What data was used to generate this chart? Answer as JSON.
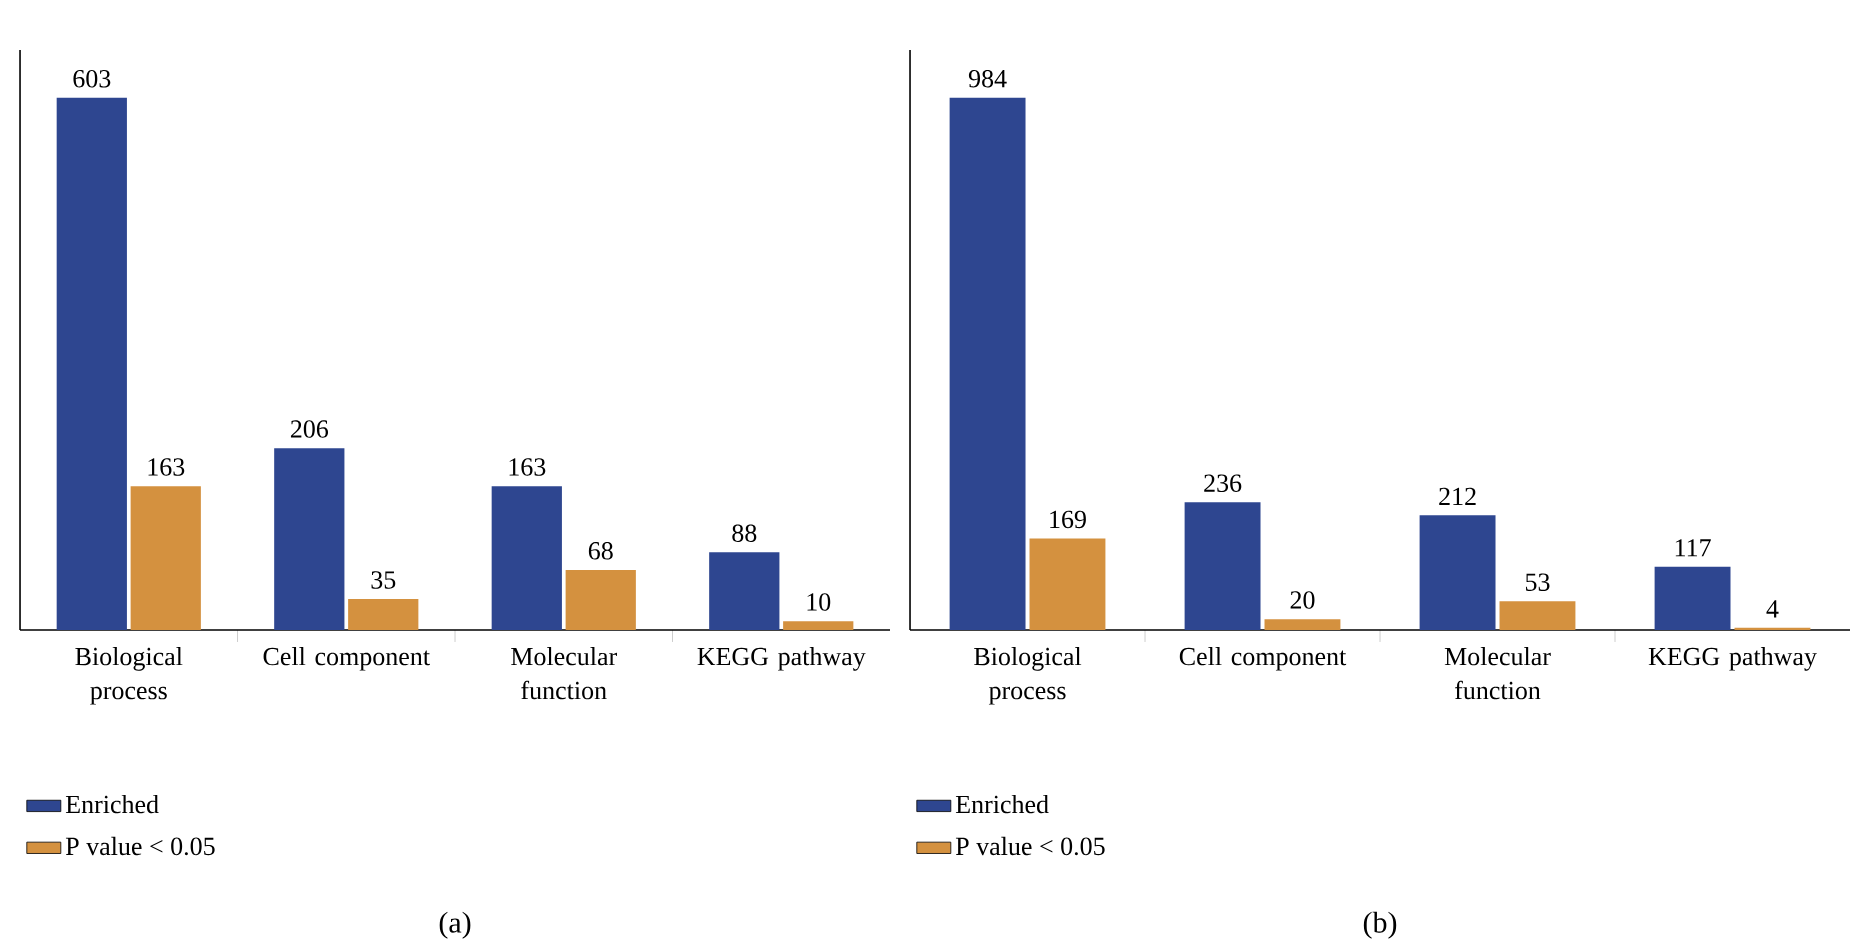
{
  "chart_data": [
    {
      "type": "bar",
      "categories": [
        "Biological process",
        "Cell component",
        "Molecular function",
        "KEGG pathway"
      ],
      "series": [
        {
          "name": "Enriched",
          "color": "#2e4690",
          "values": [
            603,
            206,
            163,
            88
          ]
        },
        {
          "name": "P value < 0.05",
          "color": "#d4913f",
          "values": [
            163,
            35,
            68,
            10
          ]
        }
      ],
      "data_labels": true,
      "legend": "bottom left",
      "tick_labels": "x",
      "annotations": [
        "(a)"
      ]
    },
    {
      "type": "bar",
      "categories": [
        "Biological process",
        "Cell component",
        "Molecular function",
        "KEGG pathway"
      ],
      "series": [
        {
          "name": "Enriched",
          "color": "#2e4690",
          "values": [
            984,
            236,
            212,
            117
          ]
        },
        {
          "name": "P value < 0.05",
          "color": "#d4913f",
          "values": [
            169,
            20,
            53,
            4
          ]
        }
      ],
      "data_labels": true,
      "legend": "bottom left",
      "tick_labels": "x",
      "annotations": [
        "(b)"
      ]
    }
  ]
}
